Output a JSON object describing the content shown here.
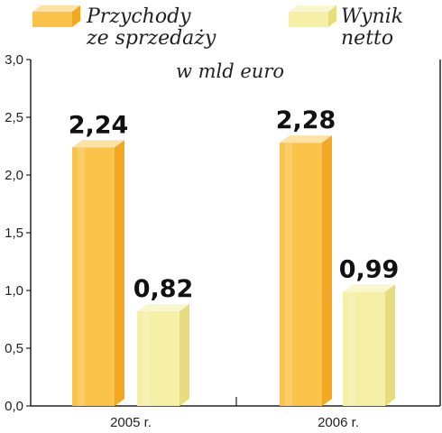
{
  "chart_data": {
    "type": "bar",
    "unit_label": "w mld euro",
    "categories": [
      "2005 r.",
      "2006 r."
    ],
    "series": [
      {
        "name_lines": [
          "Przychody",
          "ze sprzedaży"
        ],
        "values": [
          2.24,
          2.28
        ],
        "value_labels": [
          "2,24",
          "2,28"
        ],
        "color_front": "#FBC34A",
        "color_side": "#F4A723",
        "color_top": "#FDE3A3"
      },
      {
        "name_lines": [
          "Wynik",
          "netto"
        ],
        "values": [
          0.82,
          0.99
        ],
        "value_labels": [
          "0,82",
          "0,99"
        ],
        "color_front": "#F5F0A6",
        "color_side": "#E8DD7E",
        "color_top": "#FAF7CC"
      }
    ],
    "ylim": [
      0,
      3
    ],
    "yticks": [
      0,
      0.5,
      1,
      1.5,
      2,
      2.5,
      3
    ],
    "ytick_labels": [
      "0,0",
      "0,5",
      "1,0",
      "1,5",
      "2,0",
      "2,5",
      "3,0"
    ],
    "grid": false,
    "legend_position": "top"
  }
}
